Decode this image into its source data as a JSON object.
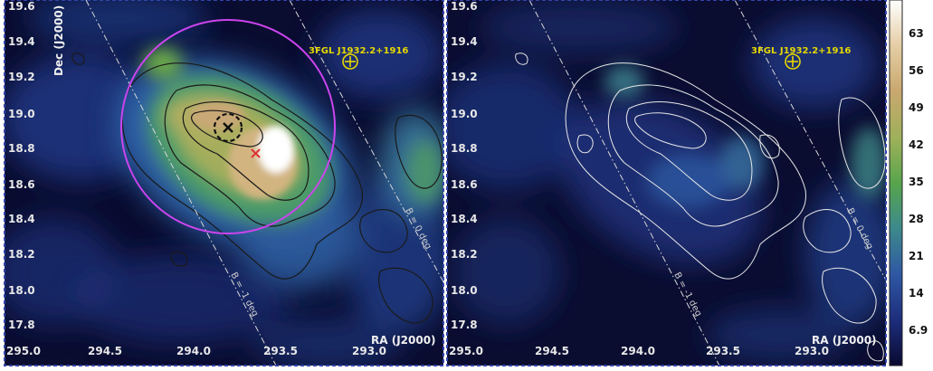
{
  "panels": [
    {
      "id": "left",
      "dec_ticks": [
        "19.6",
        "19.4",
        "19.2",
        "19.0",
        "18.8",
        "18.6",
        "18.4",
        "18.2",
        "18.0",
        "17.8"
      ],
      "ra_ticks": [
        "295.0",
        "294.5",
        "294.0",
        "293.5",
        "293.0"
      ],
      "dec_axis_label": "Dec (J2000)",
      "ra_axis_label": "RA (J2000)",
      "source_label": "3FGL J1932.2+1916",
      "b_upper_label": "B = 0 deg",
      "b_lower_label": "B = -1 deg",
      "contour_color": "#1a1a1a",
      "circle_color": "#cc44ee",
      "cross_color": "#dd3333"
    },
    {
      "id": "right",
      "dec_ticks": [
        "19.6",
        "19.4",
        "19.2",
        "19.0",
        "18.8",
        "18.6",
        "18.4",
        "18.2",
        "18.0",
        "17.8"
      ],
      "ra_ticks": [
        "295.0",
        "294.5",
        "294.0",
        "293.5",
        "293.0"
      ],
      "ra_axis_label": "RA (J2000)",
      "source_label": "3FGL J1932.2+1916",
      "b_upper_label": "B = 0 deg",
      "b_lower_label": "B = -1 deg",
      "contour_color": "#e8e8e8"
    }
  ],
  "colorbar": {
    "ticks": [
      "63",
      "56",
      "49",
      "42",
      "35",
      "28",
      "21",
      "14",
      "6.9"
    ],
    "colors": [
      "#0a0a30",
      "#1c2c7a",
      "#2f58a4",
      "#3d8b8a",
      "#58a54c",
      "#9eb05a",
      "#c9a86e",
      "#e6cfa8",
      "#ffffff"
    ]
  }
}
